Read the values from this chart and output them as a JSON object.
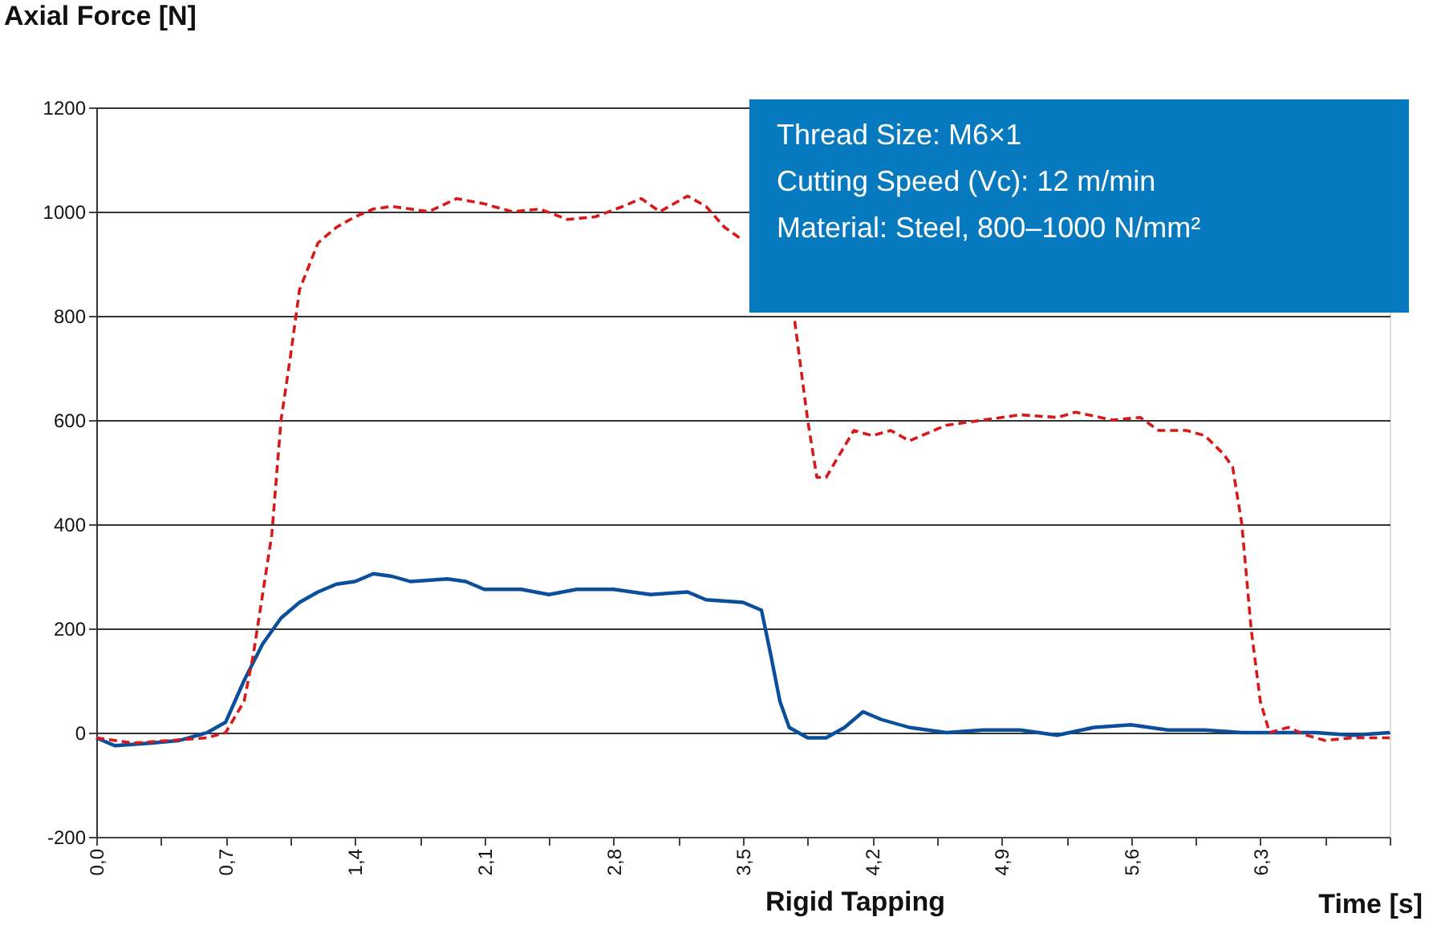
{
  "chart_data": {
    "type": "line",
    "ylabel": "Axial Force [N]",
    "xlabel": "Time [s]",
    "xlim": [
      0,
      7
    ],
    "ylim": [
      -200,
      1200
    ],
    "xticks": [
      {
        "value": 0,
        "label": "0,0"
      },
      {
        "value": 0.35,
        "label": null
      },
      {
        "value": 0.7,
        "label": "0,7"
      },
      {
        "value": 1.05,
        "label": null
      },
      {
        "value": 1.4,
        "label": "1,4"
      },
      {
        "value": 1.75,
        "label": null
      },
      {
        "value": 2.1,
        "label": "2,1"
      },
      {
        "value": 2.45,
        "label": null
      },
      {
        "value": 2.8,
        "label": "2,8"
      },
      {
        "value": 3.15,
        "label": null
      },
      {
        "value": 3.5,
        "label": "3,5"
      },
      {
        "value": 3.85,
        "label": null
      },
      {
        "value": 4.2,
        "label": "4,2"
      },
      {
        "value": 4.55,
        "label": null
      },
      {
        "value": 4.9,
        "label": "4,9"
      },
      {
        "value": 5.25,
        "label": null
      },
      {
        "value": 5.6,
        "label": "5,6"
      },
      {
        "value": 5.95,
        "label": null
      },
      {
        "value": 6.3,
        "label": "6,3"
      },
      {
        "value": 6.65,
        "label": null
      },
      {
        "value": 7.0,
        "label": null
      }
    ],
    "yticks": [
      -200,
      0,
      200,
      400,
      600,
      800,
      1000,
      1200
    ],
    "grid": "y",
    "legend": "bottom",
    "annotations": [
      "Thread Size: M6×1",
      "Cutting Speed (Vc): 12 m/min",
      "Material: Steel, 800–1000 N/mm²"
    ],
    "series": [
      {
        "color": "#0b4f9c",
        "line_style": "solid",
        "x": [
          0,
          0.1,
          0.3,
          0.45,
          0.6,
          0.7,
          0.8,
          0.9,
          1.0,
          1.1,
          1.2,
          1.3,
          1.4,
          1.5,
          1.6,
          1.7,
          1.9,
          2.0,
          2.1,
          2.3,
          2.45,
          2.6,
          2.8,
          3.0,
          3.2,
          3.3,
          3.5,
          3.6,
          3.65,
          3.7,
          3.75,
          3.85,
          3.95,
          4.05,
          4.15,
          4.25,
          4.4,
          4.6,
          4.8,
          5.0,
          5.2,
          5.4,
          5.6,
          5.8,
          6.0,
          6.2,
          6.4,
          6.6,
          6.8,
          7.0
        ],
        "values": [
          -10,
          -25,
          -20,
          -15,
          0,
          20,
          100,
          170,
          220,
          250,
          270,
          285,
          290,
          305,
          300,
          290,
          295,
          290,
          275,
          275,
          265,
          275,
          275,
          265,
          270,
          255,
          250,
          235,
          150,
          60,
          10,
          -10,
          -10,
          10,
          40,
          25,
          10,
          0,
          5,
          5,
          -5,
          10,
          15,
          5,
          5,
          0,
          0,
          0,
          -5,
          0
        ]
      },
      {
        "name": "Rigid Tapping",
        "color": "#d7191c",
        "line_style": "dashed",
        "x": [
          0,
          0.2,
          0.4,
          0.6,
          0.7,
          0.8,
          0.85,
          0.95,
          1.0,
          1.05,
          1.1,
          1.2,
          1.3,
          1.4,
          1.5,
          1.6,
          1.8,
          1.95,
          2.1,
          2.25,
          2.4,
          2.55,
          2.7,
          2.85,
          2.95,
          3.05,
          3.2,
          3.3,
          3.4,
          3.48,
          3.65,
          3.78,
          3.85,
          3.9,
          3.95,
          4.05,
          4.1,
          4.2,
          4.3,
          4.4,
          4.6,
          4.8,
          5.0,
          5.2,
          5.3,
          5.5,
          5.65,
          5.75,
          5.9,
          6.0,
          6.1,
          6.15,
          6.2,
          6.25,
          6.3,
          6.35,
          6.45,
          6.55,
          6.65,
          6.8,
          7.0
        ],
        "values": [
          -10,
          -20,
          -15,
          -10,
          0,
          60,
          150,
          380,
          600,
          720,
          850,
          940,
          970,
          990,
          1005,
          1010,
          1000,
          1025,
          1015,
          1000,
          1005,
          985,
          990,
          1010,
          1025,
          1000,
          1030,
          1010,
          970,
          950,
          null,
          790,
          600,
          490,
          490,
          550,
          580,
          570,
          580,
          560,
          590,
          600,
          610,
          605,
          615,
          600,
          605,
          580,
          580,
          570,
          535,
          510,
          400,
          200,
          60,
          0,
          10,
          -5,
          -15,
          -10,
          -10
        ]
      }
    ]
  }
}
